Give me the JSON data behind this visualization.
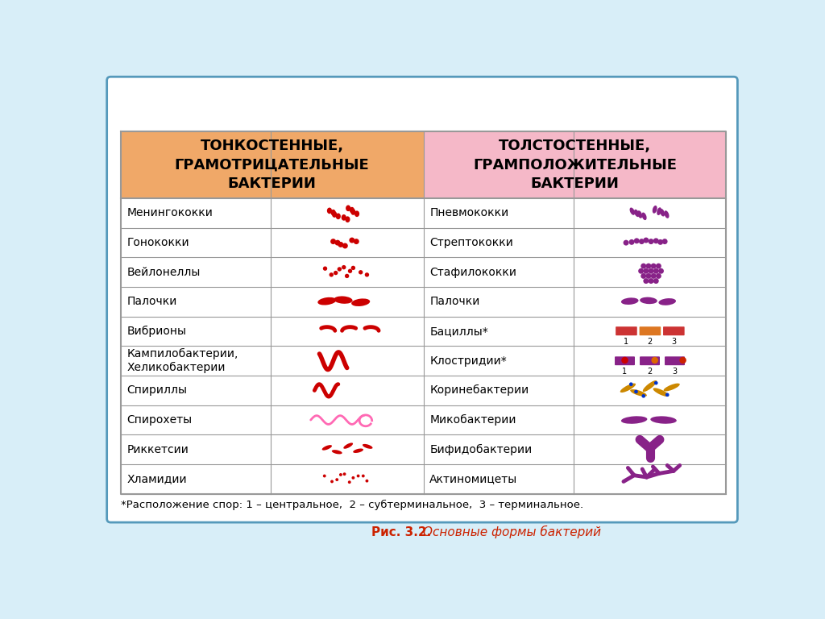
{
  "title_bold": "Рис. 3.2.",
  "title_normal": "Основные формы бактерий",
  "header_left": "ТОНКОСТЕННЫЕ,\nГРАМОТРИЦАТЕЛЬНЫЕ\nБАКТЕРИИ",
  "header_right": "ТОЛСТОСТЕННЫЕ,\nГРАМПОЛОЖИТЕЛЬНЫЕ\nБАКТЕРИИ",
  "header_left_color": "#F0A868",
  "header_right_color": "#F5B8C8",
  "footnote": "*Расположение спор: 1 – центральное,  2 – субтерминальное,  3 – терминальное.",
  "left_rows": [
    "Менингококки",
    "Гонококки",
    "Вейлонеллы",
    "Палочки",
    "Вибрионы",
    "Кампилобактерии,\nХеликобактерии",
    "Спириллы",
    "Спирохеты",
    "Риккетсии",
    "Хламидии"
  ],
  "right_rows": [
    "Пневмококки",
    "Стрептококки",
    "Стафилококки",
    "Палочки",
    "Бациллы*",
    "Клостридии*",
    "Коринебактерии",
    "Микобактерии",
    "Бифидобактерии",
    "Актиномицеты"
  ],
  "red_color": "#CC0000",
  "purple_color": "#882288",
  "orange_gold": "#CC8800",
  "blue_dot": "#0033CC",
  "pink_color": "#FF69B4",
  "outer_bg": "#D8EEF8",
  "border_color": "#5599BB",
  "table_border": "#999999",
  "text_color": "#000000",
  "title_color": "#CC2200"
}
